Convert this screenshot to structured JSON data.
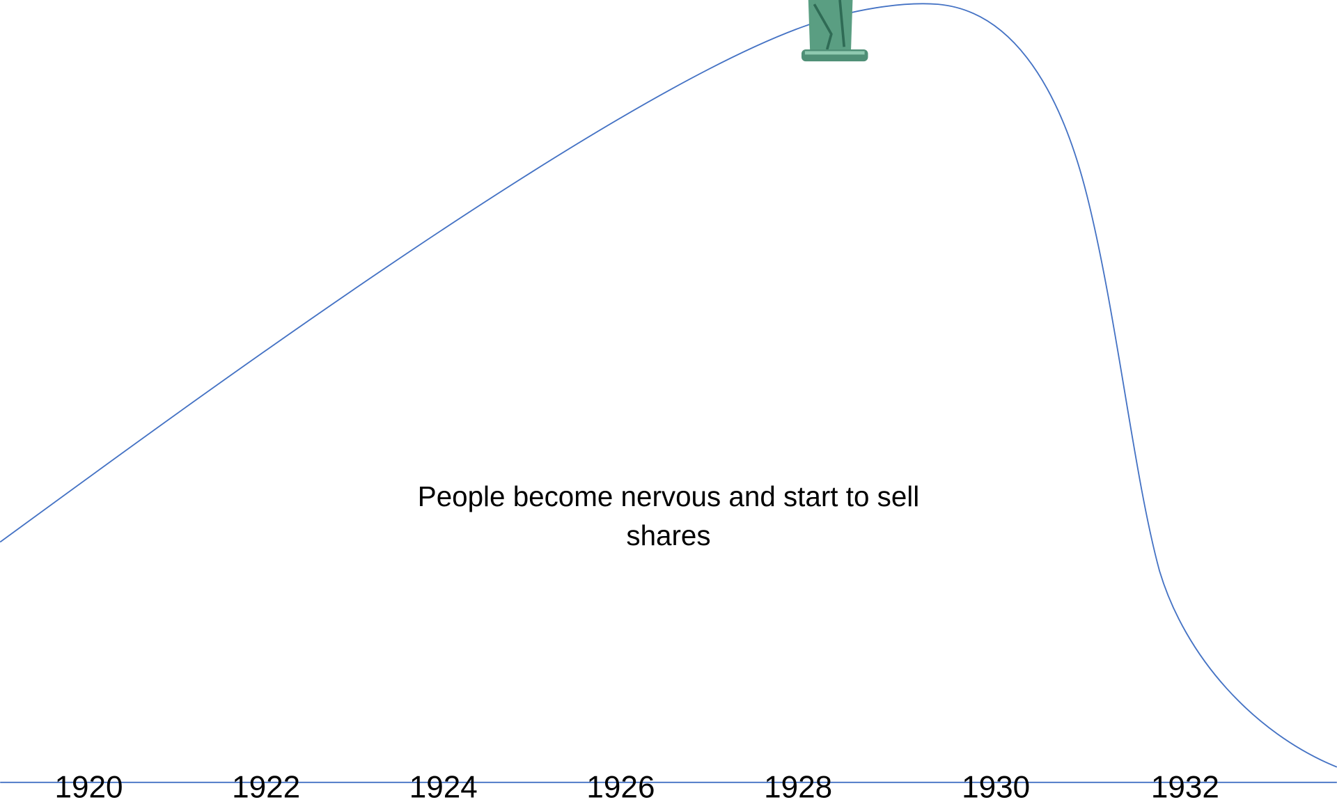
{
  "timeline": {
    "years": [
      "1920",
      "1922",
      "1924",
      "1926",
      "1928",
      "1930",
      "1932"
    ]
  },
  "annotation": {
    "lines": [
      "People become nervous and start to sell",
      "shares"
    ]
  }
}
